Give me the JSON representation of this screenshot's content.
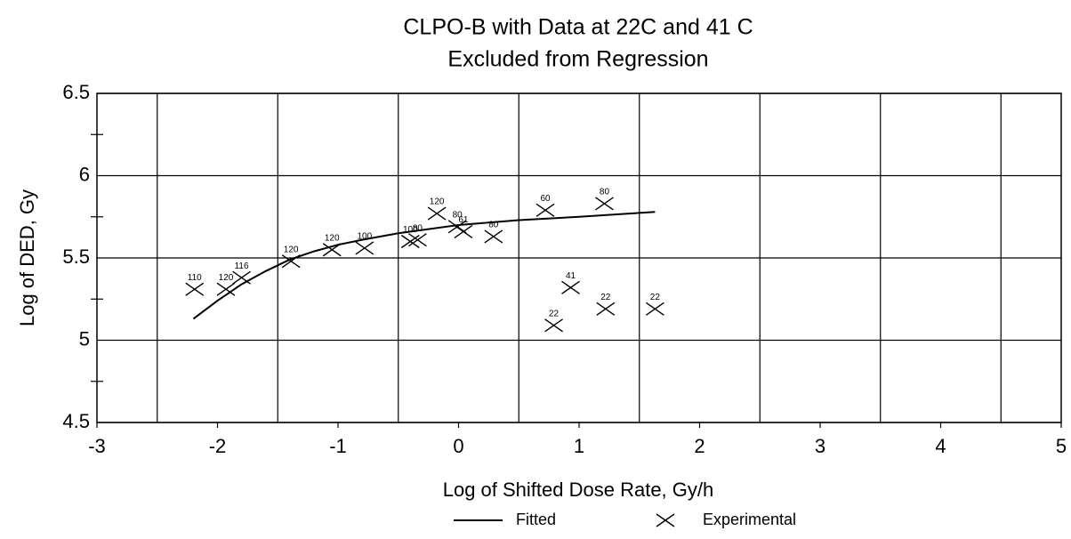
{
  "chart_data": {
    "type": "scatter",
    "title": [
      "CLPO-B with Data at 22C and 41 C",
      "Excluded from Regression"
    ],
    "xlabel": "Log of Shifted Dose Rate, Gy/h",
    "ylabel": "Log of DED, Gy",
    "xlim": [
      -3,
      5
    ],
    "ylim": [
      4.5,
      6.5
    ],
    "xticks": [
      -3,
      -2,
      -1,
      0,
      1,
      2,
      3,
      4,
      5
    ],
    "yticks": [
      4.5,
      5,
      5.5,
      6,
      6.5
    ],
    "xgrid": [
      -2.5,
      -1.5,
      -0.5,
      0.5,
      1.5,
      2.5,
      3.5,
      4.5
    ],
    "yminor": [
      4.75,
      5.25,
      5.75,
      6.25
    ],
    "grid": true,
    "legend": "bottom",
    "series": [
      {
        "name": "Fitted",
        "type": "line",
        "color": "#000000",
        "x": [
          -2.2,
          -2.0,
          -1.8,
          -1.6,
          -1.4,
          -1.2,
          -1.0,
          -0.8,
          -0.5,
          0,
          0.5,
          1.0,
          1.63
        ],
        "values": [
          5.13,
          5.24,
          5.34,
          5.42,
          5.49,
          5.54,
          5.58,
          5.61,
          5.65,
          5.7,
          5.73,
          5.75,
          5.78
        ]
      },
      {
        "name": "Experimental",
        "type": "scatter",
        "color": "#000000",
        "x": [
          -2.19,
          -1.93,
          -1.8,
          -1.39,
          -1.05,
          -0.78,
          -0.4,
          -0.34,
          -0.18,
          -0.01,
          0.04,
          0.29,
          0.72,
          1.21,
          0.93,
          0.79,
          1.22,
          1.63
        ],
        "values": [
          5.31,
          5.31,
          5.38,
          5.48,
          5.55,
          5.56,
          5.6,
          5.61,
          5.77,
          5.69,
          5.66,
          5.63,
          5.79,
          5.83,
          5.32,
          5.09,
          5.19,
          5.19
        ],
        "point_labels": [
          "110",
          "120",
          "116",
          "120",
          "120",
          "100",
          "100",
          "80",
          "120",
          "80",
          "61",
          "80",
          "60",
          "80",
          "41",
          "22",
          "22",
          "22"
        ]
      }
    ]
  }
}
